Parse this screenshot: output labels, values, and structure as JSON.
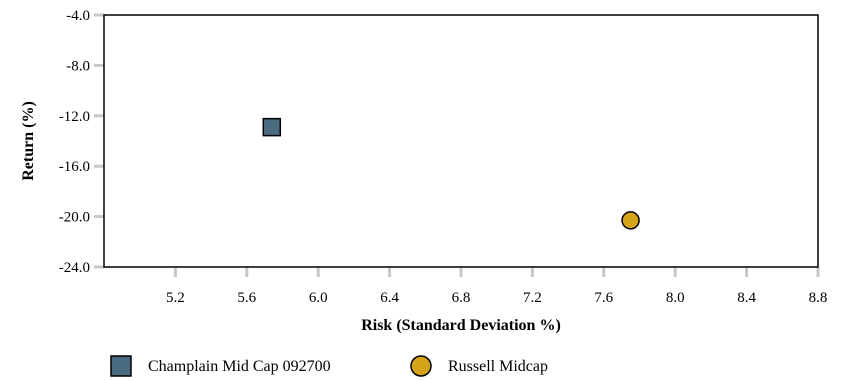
{
  "chart_data": {
    "type": "scatter",
    "xlabel": "Risk (Standard Deviation %)",
    "ylabel": "Return (%)",
    "xlim": [
      4.8,
      8.8
    ],
    "ylim": [
      -24.0,
      -4.0
    ],
    "x_ticks": [
      5.2,
      5.6,
      6.0,
      6.4,
      6.8,
      7.2,
      7.6,
      8.0,
      8.4,
      8.8
    ],
    "y_ticks": [
      -4.0,
      -8.0,
      -12.0,
      -16.0,
      -20.0,
      -24.0
    ],
    "x_tick_labels": [
      "5.2",
      "5.6",
      "6.0",
      "6.4",
      "6.8",
      "7.2",
      "7.6",
      "8.0",
      "8.4",
      "8.8"
    ],
    "y_tick_labels": [
      "-4.0",
      "-8.0",
      "-12.0",
      "-16.0",
      "-20.0",
      "-24.0"
    ],
    "grid": false,
    "legend_position": "bottom",
    "series": [
      {
        "name": "Champlain Mid Cap 092700",
        "marker": "square",
        "color": "#4a6a80",
        "points": [
          {
            "x": 5.74,
            "y": -12.9
          }
        ]
      },
      {
        "name": "Russell Midcap",
        "marker": "circle",
        "color": "#d4a418",
        "points": [
          {
            "x": 7.75,
            "y": -20.3
          }
        ]
      }
    ]
  }
}
